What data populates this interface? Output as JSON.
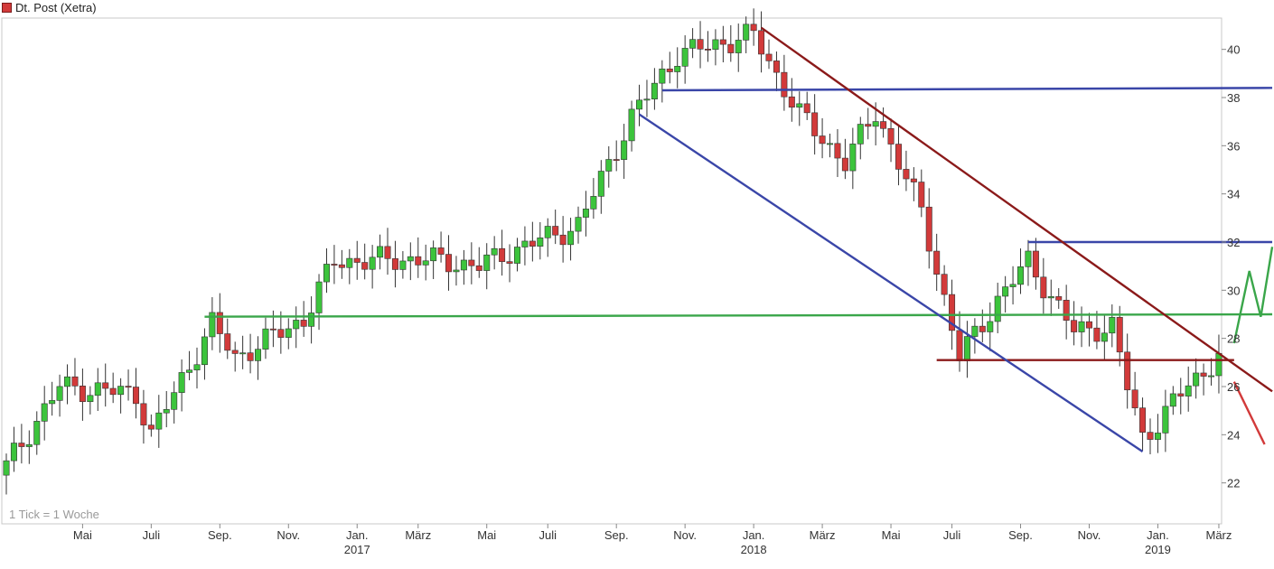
{
  "legend": {
    "label": "Dt. Post (Xetra)",
    "swatch_color": "#d23a3a"
  },
  "tick_note": "1 Tick = 1 Woche",
  "chart_data": {
    "type": "candlestick",
    "title": "",
    "series_name": "Dt. Post (Xetra)",
    "interval": "weekly",
    "up_color": "#3cc43c",
    "down_color": "#d23a3a",
    "ylim": [
      20.3,
      41.3
    ],
    "y_ticks": [
      22,
      24,
      26,
      28,
      30,
      32,
      34,
      36,
      38,
      40
    ],
    "grid": false,
    "x_ticks": [
      {
        "label": "Mai",
        "week": 10
      },
      {
        "label": "Juli",
        "week": 19
      },
      {
        "label": "Sep.",
        "week": 28
      },
      {
        "label": "Nov.",
        "week": 37
      },
      {
        "label": "Jan.",
        "week": 46,
        "year": "2017"
      },
      {
        "label": "März",
        "week": 54
      },
      {
        "label": "Mai",
        "week": 63
      },
      {
        "label": "Juli",
        "week": 71
      },
      {
        "label": "Sep.",
        "week": 80
      },
      {
        "label": "Nov.",
        "week": 89
      },
      {
        "label": "Jan.",
        "week": 98,
        "year": "2018"
      },
      {
        "label": "März",
        "week": 107
      },
      {
        "label": "Mai",
        "week": 116
      },
      {
        "label": "Juli",
        "week": 124
      },
      {
        "label": "Sep.",
        "week": 133
      },
      {
        "label": "Nov.",
        "week": 142
      },
      {
        "label": "Jan.",
        "week": 151,
        "year": "2019"
      },
      {
        "label": "März",
        "week": 159
      }
    ],
    "key_closes": [
      {
        "week": 0,
        "close": 22.7
      },
      {
        "week": 7,
        "close": 26.0
      },
      {
        "week": 17,
        "close": 25.7
      },
      {
        "week": 19,
        "close": 24.0
      },
      {
        "week": 27,
        "close": 28.6
      },
      {
        "week": 30,
        "close": 27.2
      },
      {
        "week": 39,
        "close": 28.8
      },
      {
        "week": 43,
        "close": 31.2
      },
      {
        "week": 55,
        "close": 31.3
      },
      {
        "week": 62,
        "close": 31.0
      },
      {
        "week": 66,
        "close": 31.6
      },
      {
        "week": 75,
        "close": 32.7
      },
      {
        "week": 82,
        "close": 37.2
      },
      {
        "week": 88,
        "close": 39.8
      },
      {
        "week": 98,
        "close": 40.6
      },
      {
        "week": 104,
        "close": 37.3
      },
      {
        "week": 110,
        "close": 35.3
      },
      {
        "week": 114,
        "close": 37.4
      },
      {
        "week": 118,
        "close": 34.6
      },
      {
        "week": 120,
        "close": 33.3
      },
      {
        "week": 125,
        "close": 27.2
      },
      {
        "week": 130,
        "close": 29.6
      },
      {
        "week": 134,
        "close": 31.2
      },
      {
        "week": 140,
        "close": 28.3
      },
      {
        "week": 145,
        "close": 28.5
      },
      {
        "week": 147,
        "close": 26.0
      },
      {
        "week": 149,
        "close": 23.9
      },
      {
        "week": 151,
        "close": 24.5
      },
      {
        "week": 155,
        "close": 26.1
      },
      {
        "week": 157,
        "close": 26.6
      },
      {
        "week": 159,
        "close": 27.3
      }
    ],
    "trendlines": [
      {
        "name": "resistance-horizontal-high",
        "color": "#3a46a8",
        "points": [
          {
            "week": 86,
            "value": 38.3
          },
          {
            "week": 166,
            "value": 38.4
          }
        ]
      },
      {
        "name": "resistance-horizontal-32",
        "color": "#3a46a8",
        "points": [
          {
            "week": 134,
            "value": 32.0
          },
          {
            "week": 166,
            "value": 32.0
          }
        ]
      },
      {
        "name": "support-horizontal-28.9",
        "color": "#3aa64a",
        "points": [
          {
            "week": 26,
            "value": 28.9
          },
          {
            "week": 166,
            "value": 29.0
          }
        ]
      },
      {
        "name": "support-horizontal-27.1",
        "color": "#8b1a1a",
        "points": [
          {
            "week": 122,
            "value": 27.1
          },
          {
            "week": 161,
            "value": 27.1
          }
        ]
      },
      {
        "name": "downtrend-channel-upper",
        "color": "#8b1a1a",
        "points": [
          {
            "week": 99,
            "value": 40.9
          },
          {
            "week": 166,
            "value": 25.8
          }
        ]
      },
      {
        "name": "downtrend-channel-lower",
        "color": "#3a46a8",
        "points": [
          {
            "week": 83,
            "value": 37.3
          },
          {
            "week": 149,
            "value": 23.3
          }
        ]
      }
    ],
    "scenario_arrows": [
      {
        "name": "bullish-scenario",
        "color": "#3aa64a",
        "points": [
          {
            "week": 161,
            "value": 27.8
          },
          {
            "week": 163,
            "value": 30.8
          },
          {
            "week": 164.5,
            "value": 28.9
          },
          {
            "week": 166,
            "value": 31.8
          }
        ]
      },
      {
        "name": "bearish-scenario",
        "color": "#d23a3a",
        "points": [
          {
            "week": 161,
            "value": 26.2
          },
          {
            "week": 165,
            "value": 23.6
          }
        ]
      }
    ]
  }
}
